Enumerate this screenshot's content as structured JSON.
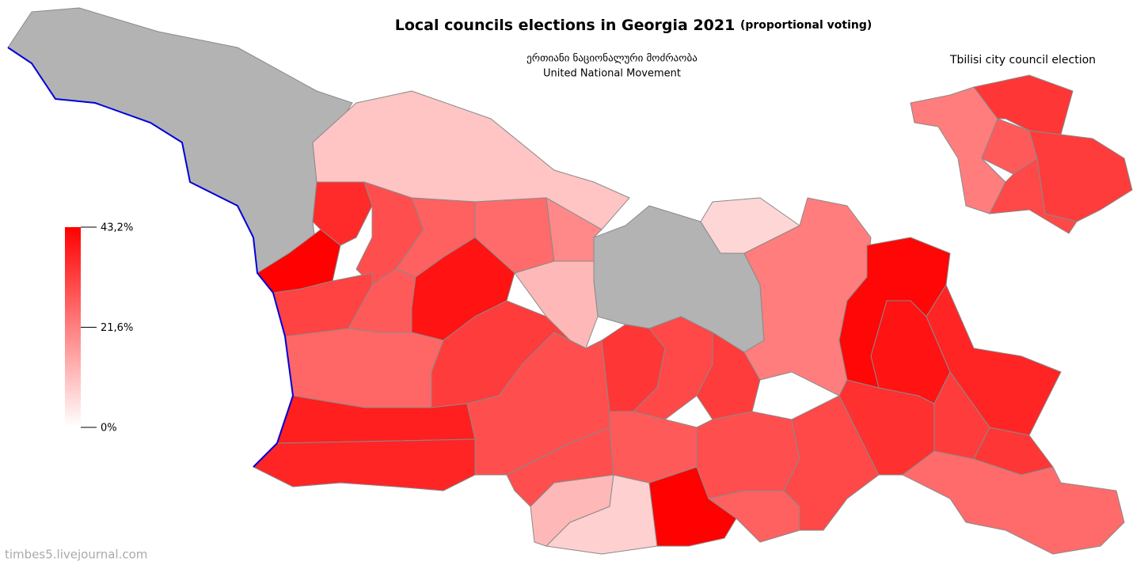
{
  "map": {
    "title": "Local councils elections in Georgia 2021",
    "title_note": "(proportional voting)",
    "party_ka": "ერთიანი ნაციონალური მოძრაობა",
    "party_en": "United National Movement",
    "inset_title": "Tbilisi city council election",
    "scale": {
      "range": [
        0,
        43.2
      ],
      "colors": [
        "#ffffff",
        "#ff0000"
      ],
      "ticks": [
        {
          "value": 43.2,
          "label": "43,2%"
        },
        {
          "value": 21.6,
          "label": "21,6%"
        },
        {
          "value": 0,
          "label": "0%"
        }
      ]
    },
    "missing_color": "#b3b3b3",
    "regions": [
      null,
      null,
      10,
      43,
      36,
      30,
      32,
      28,
      27,
      25,
      20,
      40,
      12,
      26,
      33,
      38,
      37,
      30,
      30,
      12,
      8,
      43,
      34,
      31,
      33,
      28,
      30,
      27,
      31,
      22,
      7,
      35,
      42,
      40,
      37,
      33,
      34,
      25
    ],
    "inset_regions": [
      22,
      34,
      28,
      33,
      31
    ],
    "credit": "timbes5.livejournal.com"
  }
}
